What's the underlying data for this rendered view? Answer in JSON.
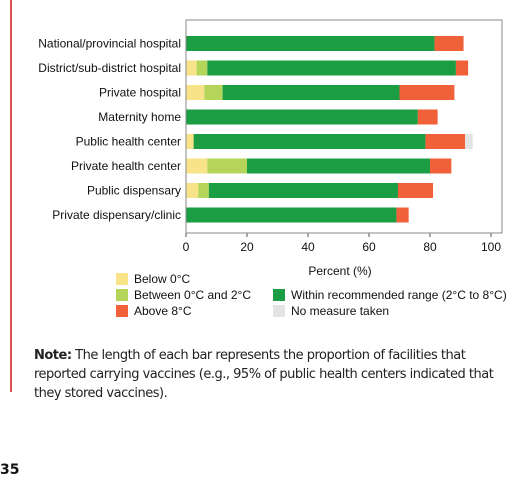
{
  "chart_data": {
    "type": "bar",
    "orientation": "horizontal",
    "stacked": true,
    "categories": [
      "National/provincial hospital",
      "District/sub-district hospital",
      "Private hospital",
      "Maternity home",
      "Public health center",
      "Private health center",
      "Public dispensary",
      "Private dispensary/clinic"
    ],
    "series": [
      {
        "name": "Below 0°C",
        "color": "#f9e388",
        "values": [
          0,
          3.5,
          6,
          0,
          2.5,
          7,
          4,
          0
        ]
      },
      {
        "name": "Between 0°C and 2°C",
        "color": "#b5d45a",
        "values": [
          0,
          3.5,
          6,
          0,
          0,
          13,
          3.5,
          0
        ]
      },
      {
        "name": "Within recommended range (2°C to 8°C)",
        "color": "#1a9d43",
        "values": [
          81.5,
          81.5,
          58,
          76,
          76,
          60,
          62,
          69
        ]
      },
      {
        "name": "Above 8°C",
        "color": "#f0613a",
        "values": [
          9.5,
          4,
          18,
          6.5,
          13,
          7,
          11.5,
          4
        ]
      },
      {
        "name": "No measure taken",
        "color": "#e4e4e4",
        "values": [
          0,
          0,
          0,
          0,
          2.5,
          0,
          0,
          0
        ]
      }
    ],
    "xlabel": "Percent (%)",
    "xlim": [
      0,
      100
    ],
    "xticks": [
      0,
      20,
      40,
      60,
      80,
      100
    ],
    "grid": false,
    "legend_position": "bottom"
  },
  "legend": {
    "below": "Below 0°C",
    "between": "Between 0°C and 2°C",
    "above": "Above 8°C",
    "within": "Within recommended range (2°C to 8°C)",
    "none": "No measure taken"
  },
  "note": {
    "label": "Note:",
    "text": " The length of each bar represents the proportion of facilities that reported carrying vaccines (e.g., 95% of public health centers indicated that they stored vaccines)."
  },
  "page_number": "35"
}
